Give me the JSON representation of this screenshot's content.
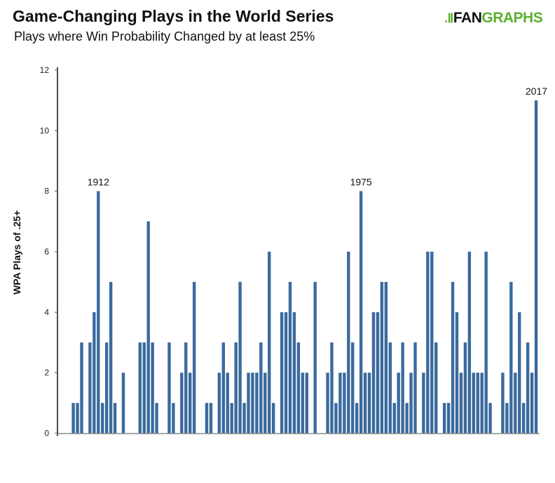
{
  "header": {
    "title": "Game-Changing Plays in the World Series",
    "subtitle": "Plays where Win Probability Changed by at least 25%"
  },
  "logo": {
    "text_a": "FAN",
    "text_b": "GRAPHS",
    "mark": ".Ⅱ",
    "brand_color": "#5cb030"
  },
  "chart_data": {
    "type": "bar",
    "title": "Game-Changing Plays in the World Series",
    "subtitle": "Plays where Win Probability Changed by at least 25%",
    "xlabel": "",
    "ylabel": "WPA Plays of .25+",
    "ylim": [
      0,
      12
    ],
    "yticks": [
      0,
      2,
      4,
      6,
      8,
      10,
      12
    ],
    "grid": false,
    "bar_color": "#3a6a9e",
    "x_start_year": 1903,
    "x": [
      1903,
      1904,
      1905,
      1906,
      1907,
      1908,
      1909,
      1910,
      1911,
      1912,
      1913,
      1914,
      1915,
      1916,
      1917,
      1918,
      1919,
      1920,
      1921,
      1922,
      1923,
      1924,
      1925,
      1926,
      1927,
      1928,
      1929,
      1930,
      1931,
      1932,
      1933,
      1934,
      1935,
      1936,
      1937,
      1938,
      1939,
      1940,
      1941,
      1942,
      1943,
      1944,
      1945,
      1946,
      1947,
      1948,
      1949,
      1950,
      1951,
      1952,
      1953,
      1954,
      1955,
      1956,
      1957,
      1958,
      1959,
      1960,
      1961,
      1962,
      1963,
      1964,
      1965,
      1966,
      1967,
      1968,
      1969,
      1970,
      1971,
      1972,
      1973,
      1974,
      1975,
      1976,
      1977,
      1978,
      1979,
      1980,
      1981,
      1982,
      1983,
      1984,
      1985,
      1986,
      1987,
      1988,
      1989,
      1990,
      1991,
      1992,
      1993,
      1994,
      1995,
      1996,
      1997,
      1998,
      1999,
      2000,
      2001,
      2002,
      2003,
      2004,
      2005,
      2006,
      2007,
      2008,
      2009,
      2010,
      2011,
      2012,
      2013,
      2014,
      2015,
      2016,
      2017
    ],
    "values": [
      0,
      0,
      0,
      1,
      1,
      3,
      0,
      3,
      4,
      8,
      1,
      3,
      5,
      1,
      0,
      2,
      0,
      0,
      0,
      3,
      3,
      7,
      3,
      1,
      0,
      0,
      3,
      1,
      0,
      2,
      3,
      2,
      5,
      0,
      0,
      1,
      1,
      0,
      2,
      3,
      2,
      1,
      3,
      5,
      1,
      2,
      2,
      2,
      3,
      2,
      6,
      1,
      0,
      4,
      4,
      5,
      4,
      3,
      2,
      2,
      0,
      5,
      0,
      0,
      2,
      3,
      1,
      2,
      2,
      6,
      3,
      1,
      8,
      2,
      2,
      4,
      4,
      5,
      5,
      3,
      1,
      2,
      3,
      1,
      2,
      3,
      0,
      2,
      6,
      6,
      3,
      0,
      1,
      1,
      5,
      4,
      2,
      3,
      6,
      2,
      2,
      2,
      6,
      1,
      0,
      0,
      2,
      1,
      5,
      2,
      4,
      1,
      3,
      2,
      11
    ],
    "annotations": [
      {
        "year": 1912,
        "text": "1912"
      },
      {
        "year": 1975,
        "text": "1975"
      },
      {
        "year": 2017,
        "text": "2017"
      }
    ]
  }
}
